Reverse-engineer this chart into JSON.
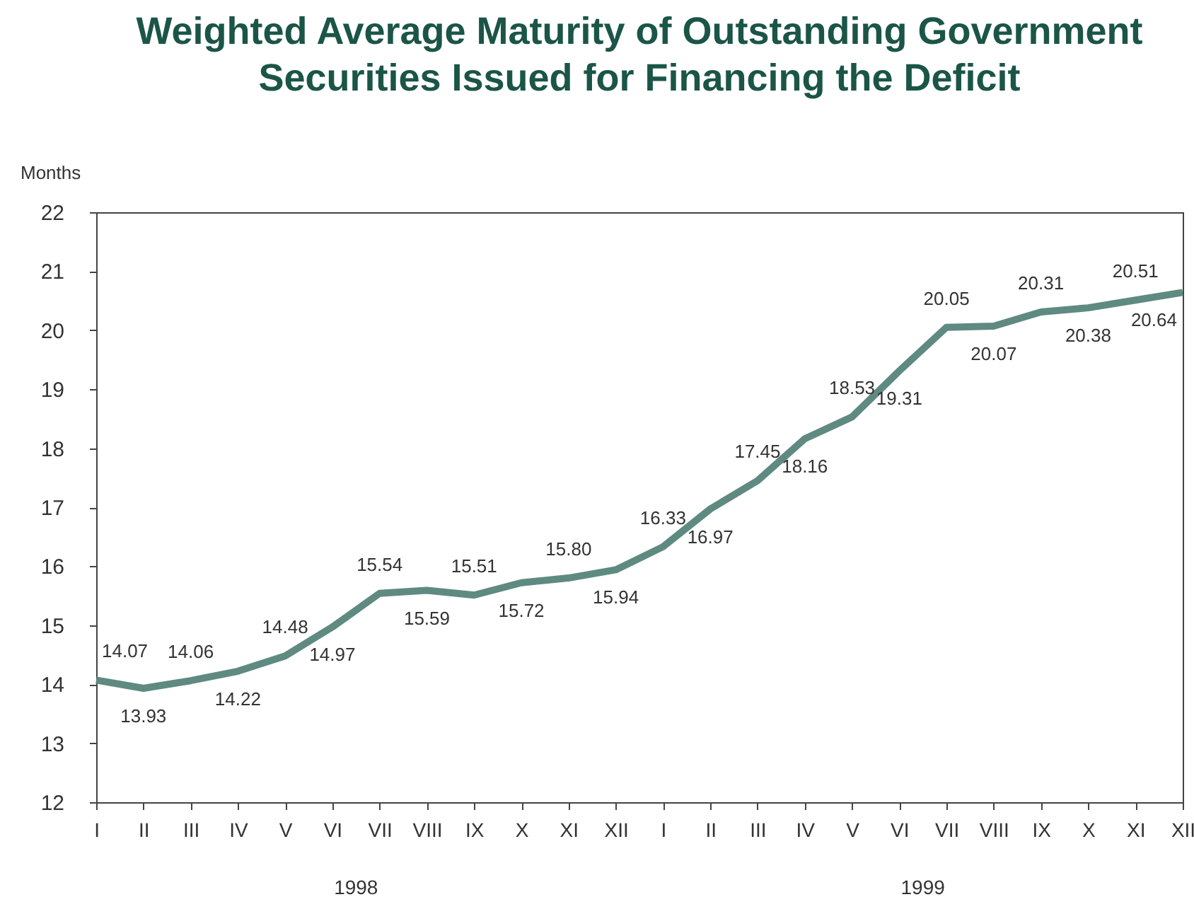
{
  "chart_data": {
    "type": "line",
    "title": "Weighted Average Maturity of Outstanding Government Securities Issued for Financing the Deficit",
    "ylabel": "Months",
    "categories": [
      "I",
      "II",
      "III",
      "IV",
      "V",
      "VI",
      "VII",
      "VIII",
      "IX",
      "X",
      "XI",
      "XII",
      "I",
      "II",
      "III",
      "IV",
      "V",
      "VI",
      "VII",
      "VIII",
      "IX",
      "X",
      "XI",
      "XII"
    ],
    "values": [
      14.07,
      13.93,
      14.06,
      14.22,
      14.48,
      14.97,
      15.54,
      15.59,
      15.51,
      15.72,
      15.8,
      15.94,
      16.33,
      16.97,
      17.45,
      18.16,
      18.53,
      19.31,
      20.05,
      20.07,
      20.31,
      20.38,
      20.51,
      20.64
    ],
    "value_labels": [
      "14.07",
      "13.93",
      "14.06",
      "14.22",
      "14.48",
      "14.97",
      "15.54",
      "15.59",
      "15.51",
      "15.72",
      "15.80",
      "15.94",
      "16.33",
      "16.97",
      "17.45",
      "18.16",
      "18.53",
      "19.31",
      "20.05",
      "20.07",
      "20.31",
      "20.38",
      "20.51",
      "20.64"
    ],
    "color": "#5f8a81",
    "ylim": [
      12,
      22
    ],
    "yticks": [
      12,
      13,
      14,
      15,
      16,
      17,
      18,
      19,
      20,
      21,
      22
    ],
    "grid": false,
    "annotations": [
      "1998",
      "1999"
    ]
  }
}
